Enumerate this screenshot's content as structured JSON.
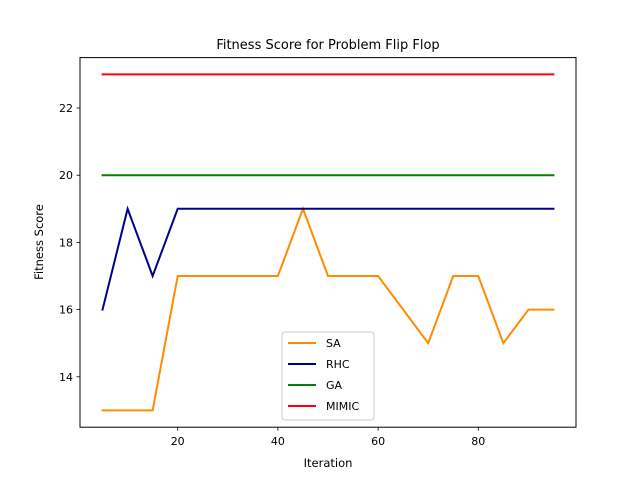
{
  "chart_data": {
    "type": "line",
    "title": "Fitness Score for Problem Flip Flop",
    "xlabel": "Iteration",
    "ylabel": "Fitness Score",
    "xlim": [
      0.5,
      99.5
    ],
    "ylim": [
      12.5,
      23.5
    ],
    "xticks": [
      20,
      40,
      60,
      80
    ],
    "yticks": [
      14,
      16,
      18,
      20,
      22
    ],
    "grid": false,
    "legend_position": "lower-center",
    "x": [
      5,
      10,
      15,
      20,
      25,
      30,
      35,
      40,
      45,
      50,
      55,
      60,
      65,
      70,
      75,
      80,
      85,
      90,
      95
    ],
    "series": [
      {
        "name": "SA",
        "color": "#ff8c00",
        "values": [
          13,
          13,
          13,
          17,
          17,
          17,
          17,
          17,
          19,
          17,
          17,
          17,
          16,
          15,
          17,
          17,
          15,
          16,
          16
        ]
      },
      {
        "name": "RHC",
        "color": "#00008b",
        "values": [
          16,
          19,
          17,
          19,
          19,
          19,
          19,
          19,
          19,
          19,
          19,
          19,
          19,
          19,
          19,
          19,
          19,
          19,
          19
        ]
      },
      {
        "name": "GA",
        "color": "#008000",
        "values": [
          20,
          20,
          20,
          20,
          20,
          20,
          20,
          20,
          20,
          20,
          20,
          20,
          20,
          20,
          20,
          20,
          20,
          20,
          20
        ]
      },
      {
        "name": "MIMIC",
        "color": "#ff0000",
        "values": [
          23,
          23,
          23,
          23,
          23,
          23,
          23,
          23,
          23,
          23,
          23,
          23,
          23,
          23,
          23,
          23,
          23,
          23,
          23
        ]
      }
    ]
  }
}
